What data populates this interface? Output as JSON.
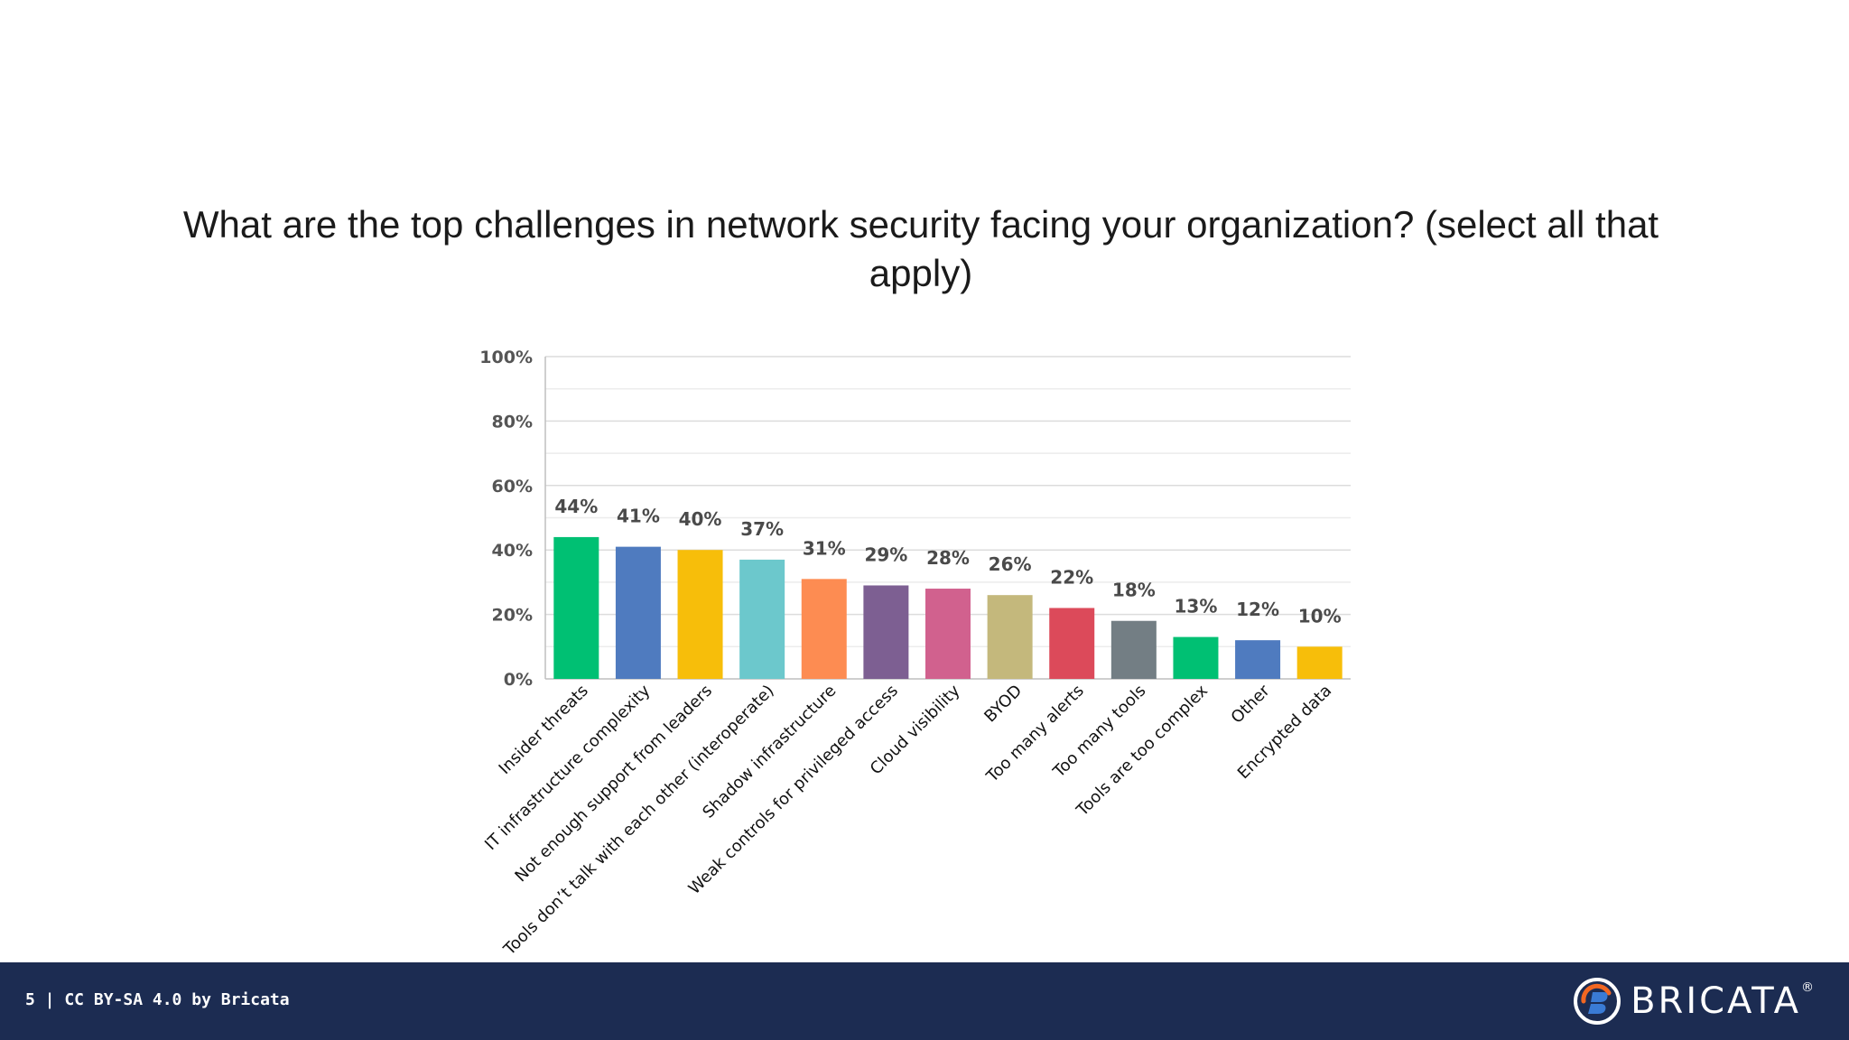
{
  "slide": {
    "title": "What are the top challenges in network security facing your organization? (select all that apply)"
  },
  "chart_data": {
    "type": "bar",
    "title": "What are the top challenges in network security facing your organization? (select all that apply)",
    "xlabel": "",
    "ylabel": "",
    "ylim": [
      0,
      100
    ],
    "yticks": [
      "0%",
      "20%",
      "40%",
      "60%",
      "80%",
      "100%"
    ],
    "grid": true,
    "categories": [
      "Insider threats",
      "IT infrastructure complexity",
      "Not enough support from leaders",
      "Tools don’t talk with each other (interoperate)",
      "Shadow infrastructure",
      "Weak controls for privileged access",
      "Cloud visibility",
      "BYOD",
      "Too many alerts",
      "Too many tools",
      "Tools are too complex",
      "Other",
      "Encrypted data"
    ],
    "values": [
      44,
      41,
      40,
      37,
      31,
      29,
      28,
      26,
      22,
      18,
      13,
      12,
      10
    ],
    "data_labels": [
      "44%",
      "41%",
      "40%",
      "37%",
      "31%",
      "29%",
      "28%",
      "26%",
      "22%",
      "18%",
      "13%",
      "12%",
      "10%"
    ],
    "colors": [
      "#00c073",
      "#4f7bbf",
      "#f7be0a",
      "#6cc8cc",
      "#fd8c52",
      "#7d5f92",
      "#d1618e",
      "#c4b87c",
      "#dc4a5a",
      "#737e84",
      "#00c073",
      "#4f7bbf",
      "#f7be0a"
    ]
  },
  "footer": {
    "text": "5 | CC BY-SA 4.0 by Bricata",
    "brand": "BRICATA",
    "brand_reg": "®",
    "background": "#1c2c52"
  }
}
